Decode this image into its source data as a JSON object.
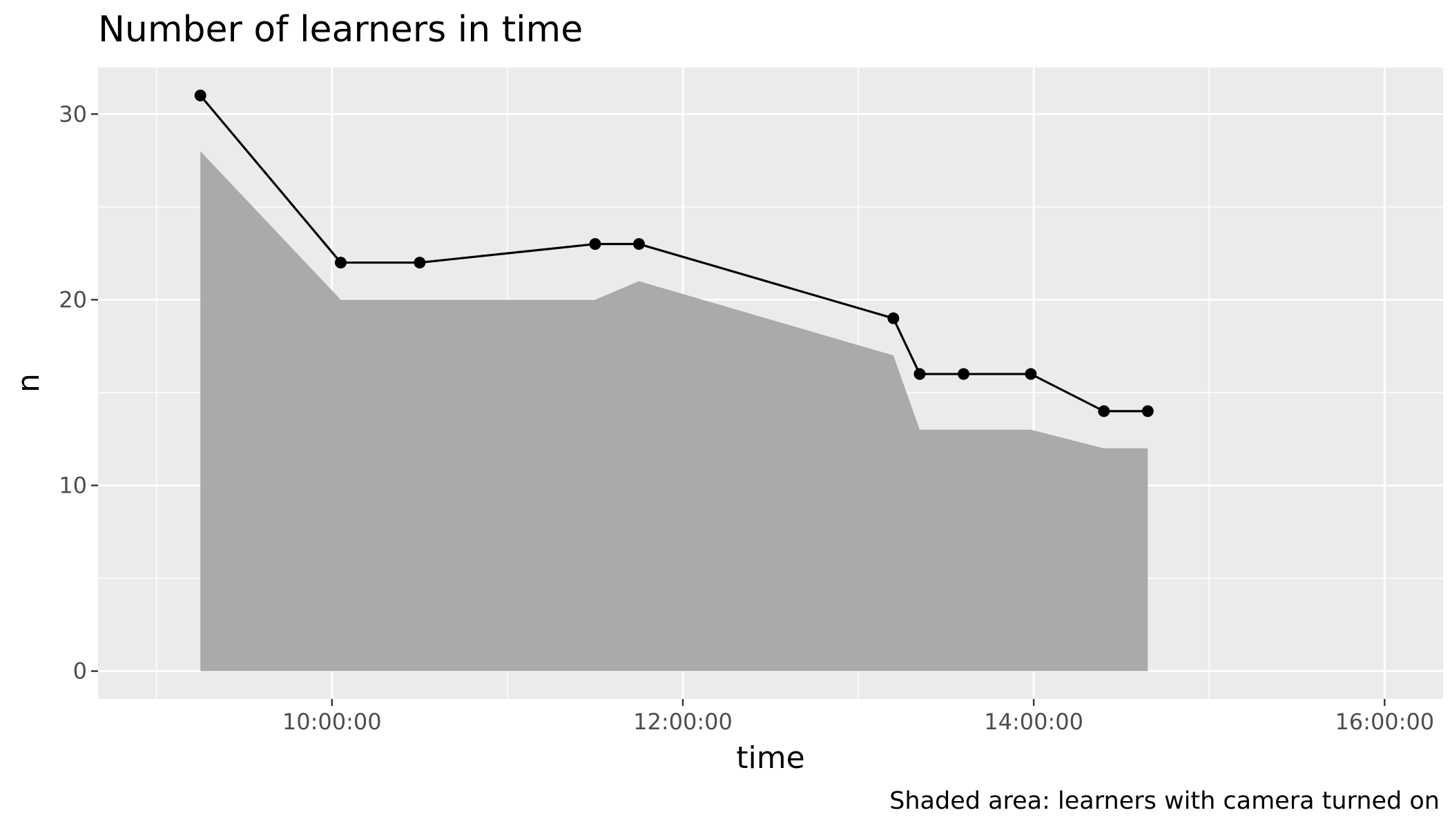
{
  "chart_data": {
    "type": "line",
    "title": "Number of learners in time",
    "xlabel": "time",
    "ylabel": "n",
    "caption": "Shaded area: learners with camera turned on",
    "x_tick_labels": [
      "10:00:00",
      "12:00:00",
      "14:00:00",
      "16:00:00"
    ],
    "y_tick_labels": [
      "0",
      "10",
      "20",
      "30"
    ],
    "xlim": [
      "08:40:00",
      "16:20:00"
    ],
    "ylim": [
      -1.5,
      32.5
    ],
    "grid": true,
    "series": [
      {
        "role": "line-with-points",
        "color": "#000000",
        "x": [
          "09:15:00",
          "10:03:00",
          "10:30:00",
          "11:30:00",
          "11:45:00",
          "13:12:00",
          "13:21:00",
          "13:36:00",
          "13:59:00",
          "14:24:00",
          "14:39:00"
        ],
        "y": [
          31,
          22,
          22,
          23,
          23,
          19,
          16,
          16,
          16,
          14,
          14
        ]
      },
      {
        "role": "shaded-area",
        "color": "#aaaaaa",
        "x": [
          "09:15:00",
          "10:03:00",
          "11:30:00",
          "11:45:00",
          "13:12:00",
          "13:21:00",
          "13:59:00",
          "14:24:00",
          "14:39:00"
        ],
        "y": [
          28,
          20,
          20,
          21,
          17,
          13,
          13,
          12,
          12
        ]
      }
    ]
  }
}
